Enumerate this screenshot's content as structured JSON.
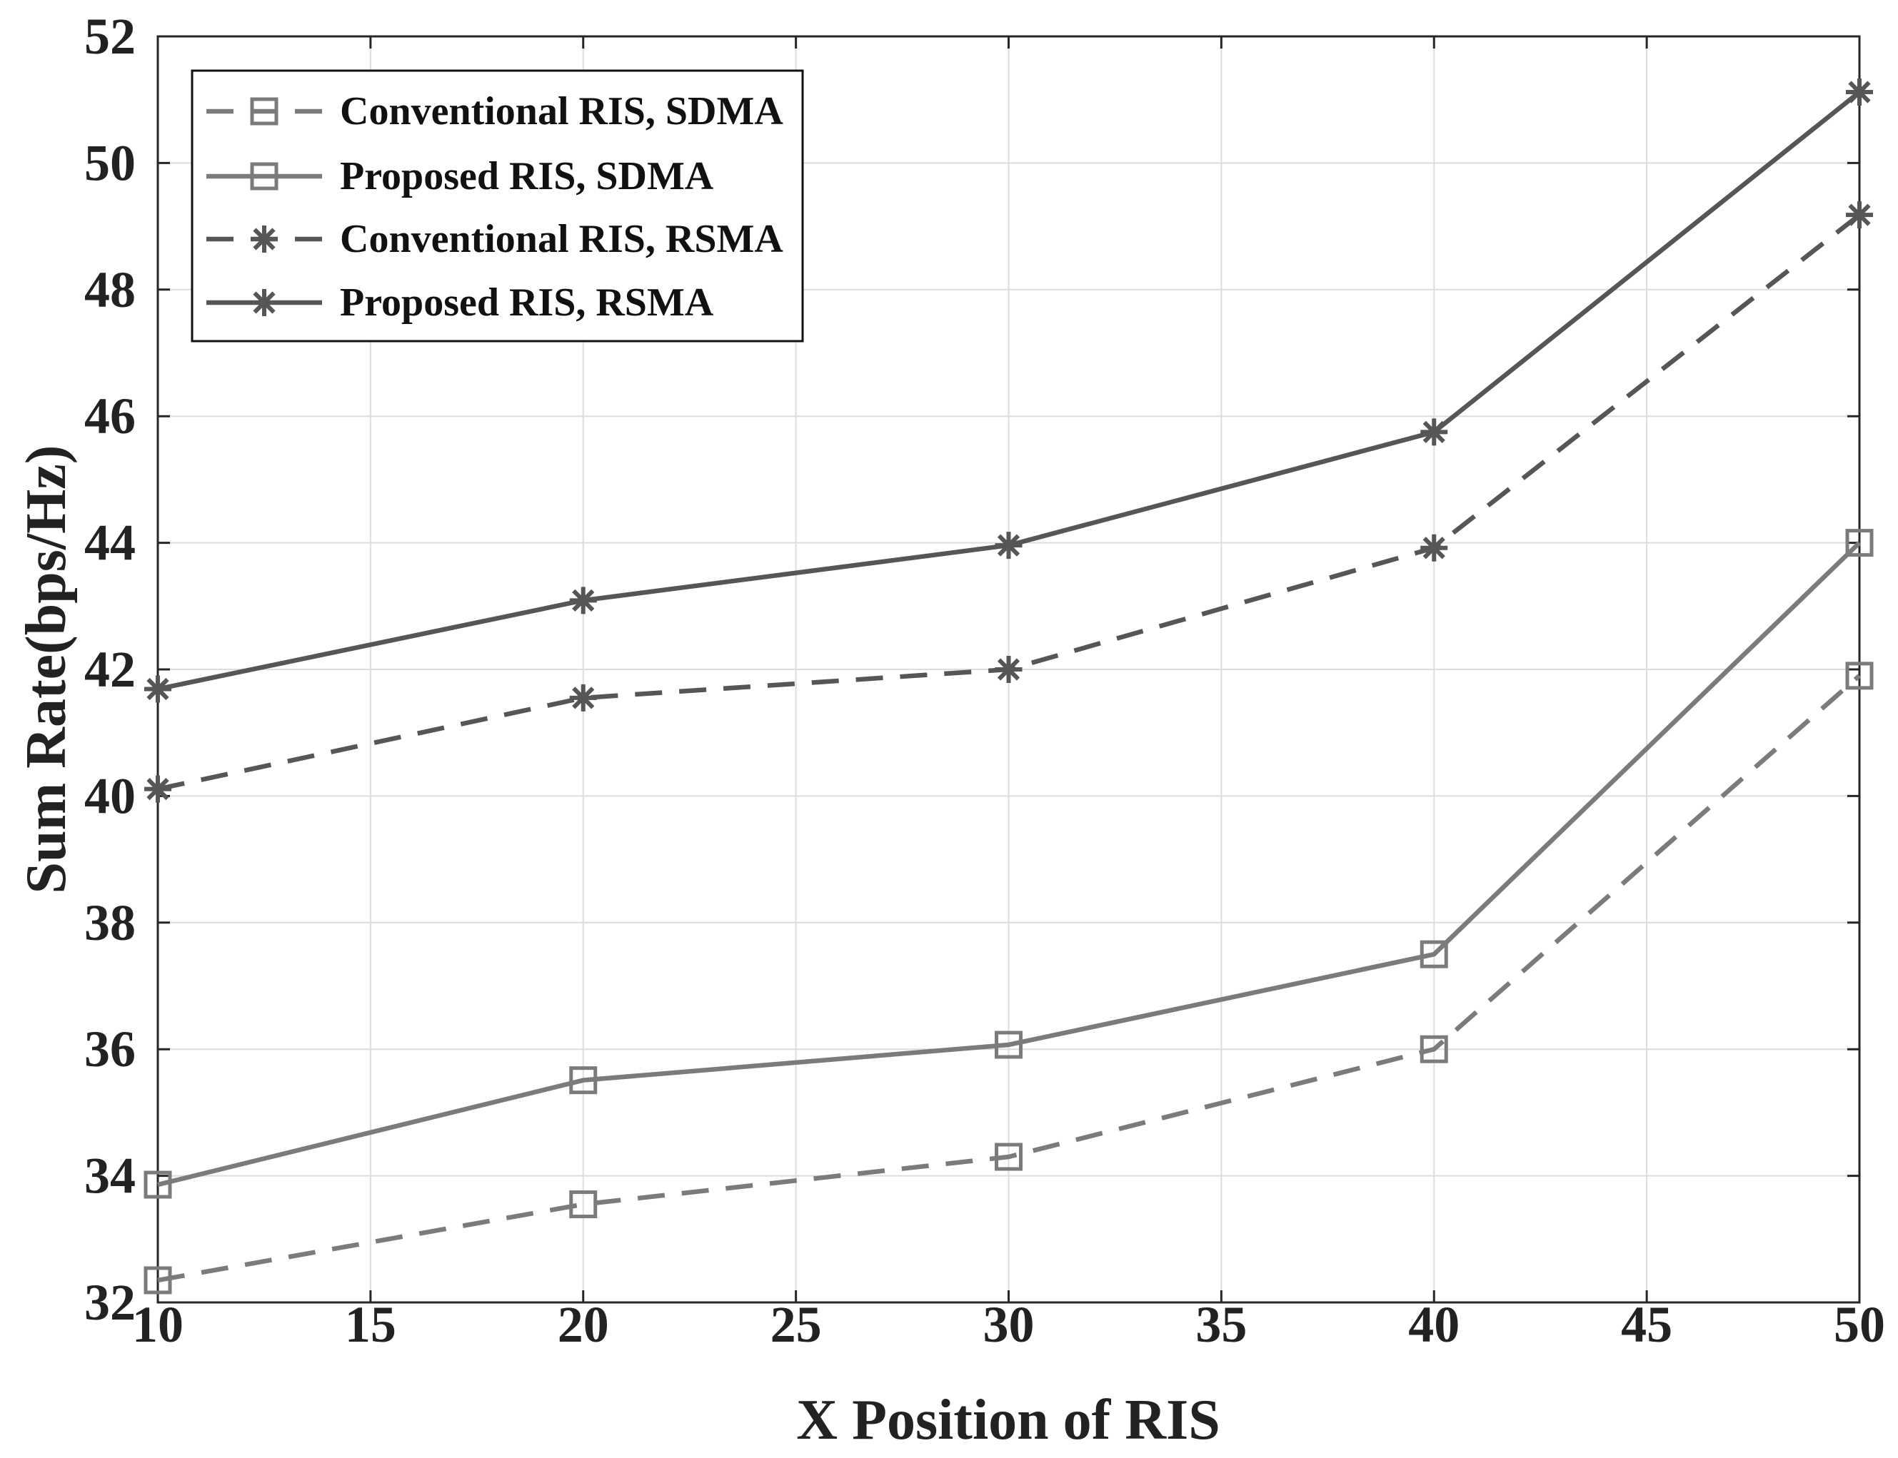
{
  "chart_data": {
    "type": "line",
    "title": "",
    "xlabel": "X Position of RIS",
    "ylabel": "Sum Rate(bps/Hz)",
    "xlim": [
      10,
      50
    ],
    "ylim": [
      32,
      52
    ],
    "xticks": [
      10,
      15,
      20,
      25,
      30,
      35,
      40,
      45,
      50
    ],
    "yticks": [
      32,
      34,
      36,
      38,
      40,
      42,
      44,
      46,
      48,
      50,
      52
    ],
    "grid": true,
    "legend_position": "top-left",
    "x": [
      10,
      20,
      30,
      40,
      50
    ],
    "series": [
      {
        "name": "Conventional RIS, SDMA",
        "line_style": "dashed",
        "marker": "square",
        "color": "#7b7b7b",
        "values": [
          32.35,
          33.55,
          34.3,
          36.0,
          41.9
        ]
      },
      {
        "name": "Proposed RIS, SDMA",
        "line_style": "solid",
        "marker": "square",
        "color": "#7b7b7b",
        "values": [
          33.86,
          35.51,
          36.07,
          37.5,
          44.0
        ]
      },
      {
        "name": "Conventional RIS, RSMA",
        "line_style": "dashed",
        "marker": "asterisk",
        "color": "#565656",
        "values": [
          40.11,
          41.55,
          42.0,
          43.92,
          49.18
        ]
      },
      {
        "name": "Proposed RIS, RSMA",
        "line_style": "solid",
        "marker": "asterisk",
        "color": "#565656",
        "values": [
          41.69,
          43.09,
          43.96,
          45.75,
          51.12
        ]
      }
    ]
  }
}
